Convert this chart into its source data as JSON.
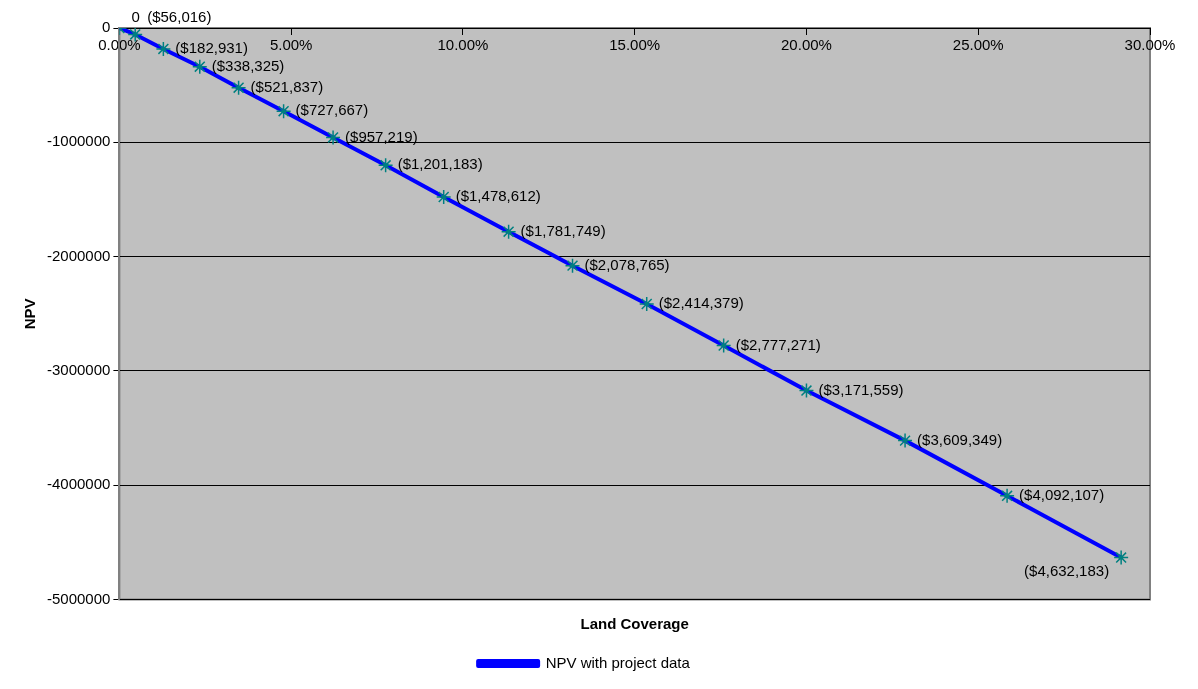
{
  "chart_data": {
    "type": "line",
    "xlabel": "Land Coverage",
    "ylabel": "NPV",
    "x": [
      0,
      0.46,
      1.28,
      2.34,
      3.47,
      4.78,
      6.22,
      7.75,
      9.44,
      11.33,
      13.19,
      15.35,
      17.59,
      20.0,
      22.87,
      25.84,
      29.16
    ],
    "series": [
      {
        "name": "NPV with project data",
        "color": "#0000ff",
        "values": [
          0,
          -56016,
          -182931,
          -338325,
          -521837,
          -727667,
          -957219,
          -1201183,
          -1478612,
          -1781749,
          -2078765,
          -2414379,
          -2777271,
          -3171559,
          -3609349,
          -4092107,
          -4632183
        ],
        "value_labels": [
          "0",
          "($56,016)",
          "($182,931)",
          "($338,325)",
          "($521,837)",
          "($727,667)",
          "($957,219)",
          "($1,201,183)",
          "($1,478,612)",
          "($1,781,749)",
          "($2,078,765)",
          "($2,414,379)",
          "($2,777,271)",
          "($3,171,559)",
          "($3,609,349)",
          "($4,092,107)",
          "($4,632,183)"
        ]
      }
    ],
    "xlim": [
      0,
      30
    ],
    "xticks": [
      {
        "value": 0,
        "label": "0.00%"
      },
      {
        "value": 5,
        "label": "5.00%"
      },
      {
        "value": 10,
        "label": "10.00%"
      },
      {
        "value": 15,
        "label": "15.00%"
      },
      {
        "value": 20,
        "label": "20.00%"
      },
      {
        "value": 25,
        "label": "25.00%"
      },
      {
        "value": 30,
        "label": "30.00%"
      }
    ],
    "ylim": [
      -5000000,
      0
    ],
    "yticks": [
      0,
      -1000000,
      -2000000,
      -3000000,
      -4000000,
      -5000000
    ],
    "grid": "y",
    "legend": "bottom",
    "marker": "cross",
    "line_style": "solid"
  }
}
